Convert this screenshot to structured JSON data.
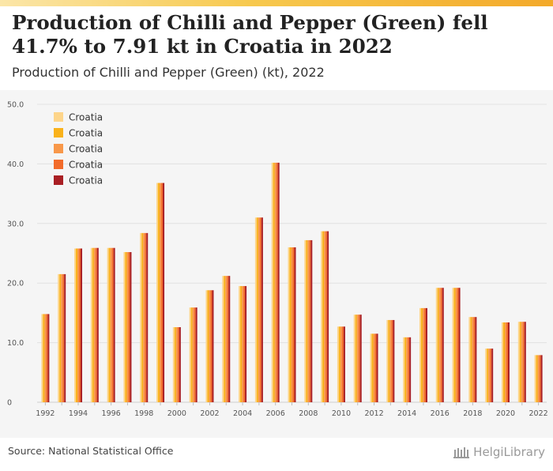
{
  "header": {
    "title": "Production of Chilli and Pepper (Green) fell 41.7% to 7.91 kt in Croatia in 2022",
    "subtitle": "Production of Chilli and Pepper (Green) (kt), 2022"
  },
  "footer": {
    "source": "Source: National Statistical Office",
    "brand": "HelgiLibrary"
  },
  "colors": {
    "accent_bar": "#f3a92a",
    "plot_background": "#f5f5f5",
    "gridline": "#e2e2e2"
  },
  "chart_data": {
    "type": "bar",
    "ylim": [
      0,
      50
    ],
    "yticks": [
      "0",
      "10.0",
      "20.0",
      "30.0",
      "40.0",
      "50.0"
    ],
    "ytick_values": [
      0,
      10,
      20,
      30,
      40,
      50
    ],
    "x_tick_labels": [
      "1992",
      "1994",
      "1996",
      "1998",
      "2000",
      "2002",
      "2004",
      "2006",
      "2008",
      "2010",
      "2012",
      "2014",
      "2016",
      "2018",
      "2020",
      "2022"
    ],
    "categories": [
      "1992",
      "1993",
      "1994",
      "1995",
      "1996",
      "1997",
      "1998",
      "1999",
      "2000",
      "2001",
      "2002",
      "2003",
      "2004",
      "2005",
      "2006",
      "2007",
      "2008",
      "2009",
      "2010",
      "2011",
      "2012",
      "2013",
      "2014",
      "2015",
      "2016",
      "2017",
      "2018",
      "2019",
      "2020",
      "2021",
      "2022"
    ],
    "series": [
      {
        "name": "Croatia",
        "color": "#fdd58a",
        "values": [
          14.8,
          21.5,
          25.8,
          25.9,
          25.9,
          25.2,
          28.4,
          36.8,
          12.6,
          15.9,
          18.8,
          21.2,
          19.5,
          31.0,
          40.2,
          26.0,
          27.2,
          28.7,
          12.7,
          14.7,
          11.5,
          13.8,
          10.9,
          15.8,
          19.2,
          19.2,
          14.3,
          9.0,
          13.4,
          13.5,
          7.91
        ]
      },
      {
        "name": "Croatia",
        "color": "#f9b21b",
        "values": [
          14.8,
          21.5,
          25.8,
          25.9,
          25.9,
          25.2,
          28.4,
          36.8,
          12.6,
          15.9,
          18.8,
          21.2,
          19.5,
          31.0,
          40.2,
          26.0,
          27.2,
          28.7,
          12.7,
          14.7,
          11.5,
          13.8,
          10.9,
          15.8,
          19.2,
          19.2,
          14.3,
          9.0,
          13.4,
          13.5,
          7.91
        ]
      },
      {
        "name": "Croatia",
        "color": "#f8984a",
        "values": [
          14.8,
          21.5,
          25.8,
          25.9,
          25.9,
          25.2,
          28.4,
          36.8,
          12.6,
          15.9,
          18.8,
          21.2,
          19.5,
          31.0,
          40.2,
          26.0,
          27.2,
          28.7,
          12.7,
          14.7,
          11.5,
          13.8,
          10.9,
          15.8,
          19.2,
          19.2,
          14.3,
          9.0,
          13.4,
          13.5,
          7.91
        ]
      },
      {
        "name": "Croatia",
        "color": "#f26b2a",
        "values": [
          14.8,
          21.5,
          25.8,
          25.9,
          25.9,
          25.2,
          28.4,
          36.8,
          12.6,
          15.9,
          18.8,
          21.2,
          19.5,
          31.0,
          40.2,
          26.0,
          27.2,
          28.7,
          12.7,
          14.7,
          11.5,
          13.8,
          10.9,
          15.8,
          19.2,
          19.2,
          14.3,
          9.0,
          13.4,
          13.5,
          7.91
        ]
      },
      {
        "name": "Croatia",
        "color": "#a91f24",
        "values": [
          14.8,
          21.5,
          25.8,
          25.9,
          25.9,
          25.2,
          28.4,
          36.8,
          12.6,
          15.9,
          18.8,
          21.2,
          19.5,
          31.0,
          40.2,
          26.0,
          27.2,
          28.7,
          12.7,
          14.7,
          11.5,
          13.8,
          10.9,
          15.8,
          19.2,
          19.2,
          14.3,
          9.0,
          13.4,
          13.5,
          7.91
        ]
      }
    ],
    "legend_position": "top-left",
    "grid": true
  }
}
